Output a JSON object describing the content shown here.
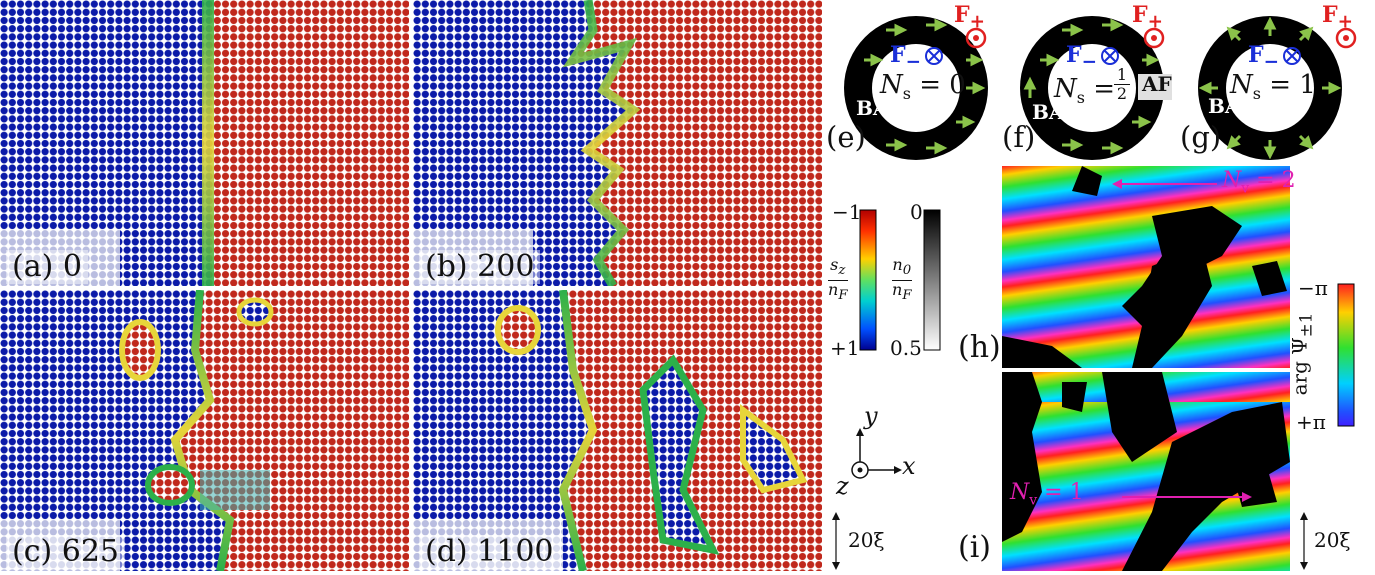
{
  "panels": {
    "a": {
      "label": "(a) 0"
    },
    "b": {
      "label": "(b) 200"
    },
    "c": {
      "label": "(c) 625"
    },
    "d": {
      "label": "(d) 1100"
    }
  },
  "rings": [
    {
      "letter": "(e)",
      "ns_text": "N",
      "ns_sub": "s",
      "ns_value": "= 0",
      "f_minus": "F",
      "f_minus_sub": "−",
      "f_plus": "F",
      "f_plus_sub": "+",
      "ba": "BA"
    },
    {
      "letter": "(f)",
      "ns_text": "N",
      "ns_sub": "s",
      "ns_value_num": "1",
      "ns_value_den": "2",
      "f_minus": "F",
      "f_minus_sub": "−",
      "f_plus": "F",
      "f_plus_sub": "+",
      "ba": "BA",
      "af": "AF"
    },
    {
      "letter": "(g)",
      "ns_text": "N",
      "ns_sub": "s",
      "ns_value": "= 1",
      "f_minus": "F",
      "f_minus_sub": "−",
      "f_plus": "F",
      "f_plus_sub": "+",
      "ba": "BA"
    }
  ],
  "colorbars": {
    "sz": {
      "top": "−1",
      "bottom": "+1",
      "num": "s",
      "num_sub": "z",
      "den": "n",
      "den_sub": "F"
    },
    "n0": {
      "top": "0",
      "bottom": "0.5",
      "num": "n",
      "num_sub": "0",
      "den": "n",
      "den_sub": "F"
    },
    "phase": {
      "top": "−π",
      "bottom": "+π",
      "label": "arg Ψ",
      "label_sub": "±1"
    }
  },
  "axes": {
    "y": "y",
    "x": "x",
    "z": "z"
  },
  "scale": {
    "left": "20ξ",
    "right": "20ξ"
  },
  "phase_panels": {
    "h": {
      "letter": "(h)",
      "annot": "N",
      "annot_sub": "v",
      "annot_value": "= 2"
    },
    "i": {
      "letter": "(i)",
      "annot": "N",
      "annot_sub": "v",
      "annot_value": "= 1"
    }
  },
  "colors": {
    "blue": "#0b1aa8",
    "red": "#c0281c",
    "magenta": "#e020b0",
    "green_arrow": "#8bc34a",
    "fplus": "#e02020",
    "fminus": "#1a2fd8"
  }
}
